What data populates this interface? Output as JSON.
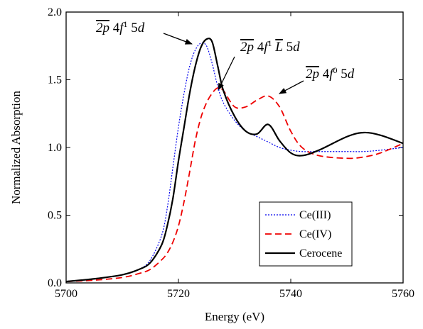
{
  "chart_data": {
    "type": "line",
    "x_label": "Energy (eV)",
    "y_label": "Normalized Absorption",
    "x": [
      5700,
      5705,
      5710,
      5713,
      5715,
      5717,
      5718,
      5719,
      5720,
      5721,
      5722,
      5723,
      5724,
      5725,
      5726,
      5727,
      5728,
      5730,
      5732,
      5734,
      5736,
      5738,
      5740,
      5742,
      5745,
      5750,
      5753,
      5756,
      5760
    ],
    "series": [
      {
        "name": "Ce(III)",
        "color": "#0000ee",
        "dash": "dotted",
        "values": [
          0.01,
          0.03,
          0.06,
          0.1,
          0.17,
          0.35,
          0.55,
          0.85,
          1.15,
          1.4,
          1.6,
          1.72,
          1.77,
          1.75,
          1.62,
          1.45,
          1.33,
          1.2,
          1.12,
          1.08,
          1.04,
          1.0,
          0.98,
          0.97,
          0.97,
          0.97,
          0.97,
          0.98,
          1.0
        ]
      },
      {
        "name": "Ce(IV)",
        "color": "#ee0000",
        "dash": "dashed",
        "values": [
          0.01,
          0.02,
          0.04,
          0.07,
          0.1,
          0.17,
          0.22,
          0.3,
          0.42,
          0.6,
          0.82,
          1.05,
          1.22,
          1.33,
          1.4,
          1.44,
          1.42,
          1.3,
          1.3,
          1.35,
          1.38,
          1.3,
          1.12,
          1.0,
          0.94,
          0.92,
          0.93,
          0.96,
          1.03
        ]
      },
      {
        "name": "Cerocene",
        "color": "#000000",
        "dash": "solid",
        "values": [
          0.01,
          0.03,
          0.06,
          0.1,
          0.15,
          0.28,
          0.42,
          0.62,
          0.9,
          1.15,
          1.4,
          1.6,
          1.74,
          1.8,
          1.78,
          1.6,
          1.42,
          1.23,
          1.12,
          1.1,
          1.17,
          1.05,
          0.96,
          0.94,
          0.98,
          1.08,
          1.11,
          1.09,
          1.03
        ]
      }
    ],
    "xlim": [
      5700,
      5760
    ],
    "xticks": [
      5700,
      5720,
      5740,
      5760
    ],
    "ylim": [
      0,
      2
    ],
    "yticks": [
      {
        "value": 0,
        "label": "0.0"
      },
      0.5,
      {
        "value": 1,
        "label": "1.0"
      },
      1.5,
      {
        "value": 2,
        "label": "2.0"
      }
    ],
    "annotations": [
      {
        "segments": [
          {
            "text": "2p",
            "style": "over"
          },
          {
            "text": " 4",
            "style": "plain"
          },
          {
            "text": "f",
            "style": "it"
          },
          {
            "text": "1",
            "style": "sup"
          },
          {
            "text": " 5",
            "style": "plain"
          },
          {
            "text": "d",
            "style": "it"
          }
        ]
      },
      {
        "segments": [
          {
            "text": "2p",
            "style": "over"
          },
          {
            "text": " 4",
            "style": "plain"
          },
          {
            "text": "f",
            "style": "it"
          },
          {
            "text": "1",
            "style": "sup"
          },
          {
            "text": " ",
            "style": "plain"
          },
          {
            "text": "L",
            "style": "over"
          },
          {
            "text": " 5",
            "style": "plain"
          },
          {
            "text": "d",
            "style": "it"
          }
        ]
      },
      {
        "segments": [
          {
            "text": "2p",
            "style": "over"
          },
          {
            "text": " 4",
            "style": "plain"
          },
          {
            "text": "f",
            "style": "it"
          },
          {
            "text": "0",
            "style": "sup"
          },
          {
            "text": " 5",
            "style": "plain"
          },
          {
            "text": "d",
            "style": "it"
          }
        ]
      }
    ],
    "legend": "lower right"
  }
}
